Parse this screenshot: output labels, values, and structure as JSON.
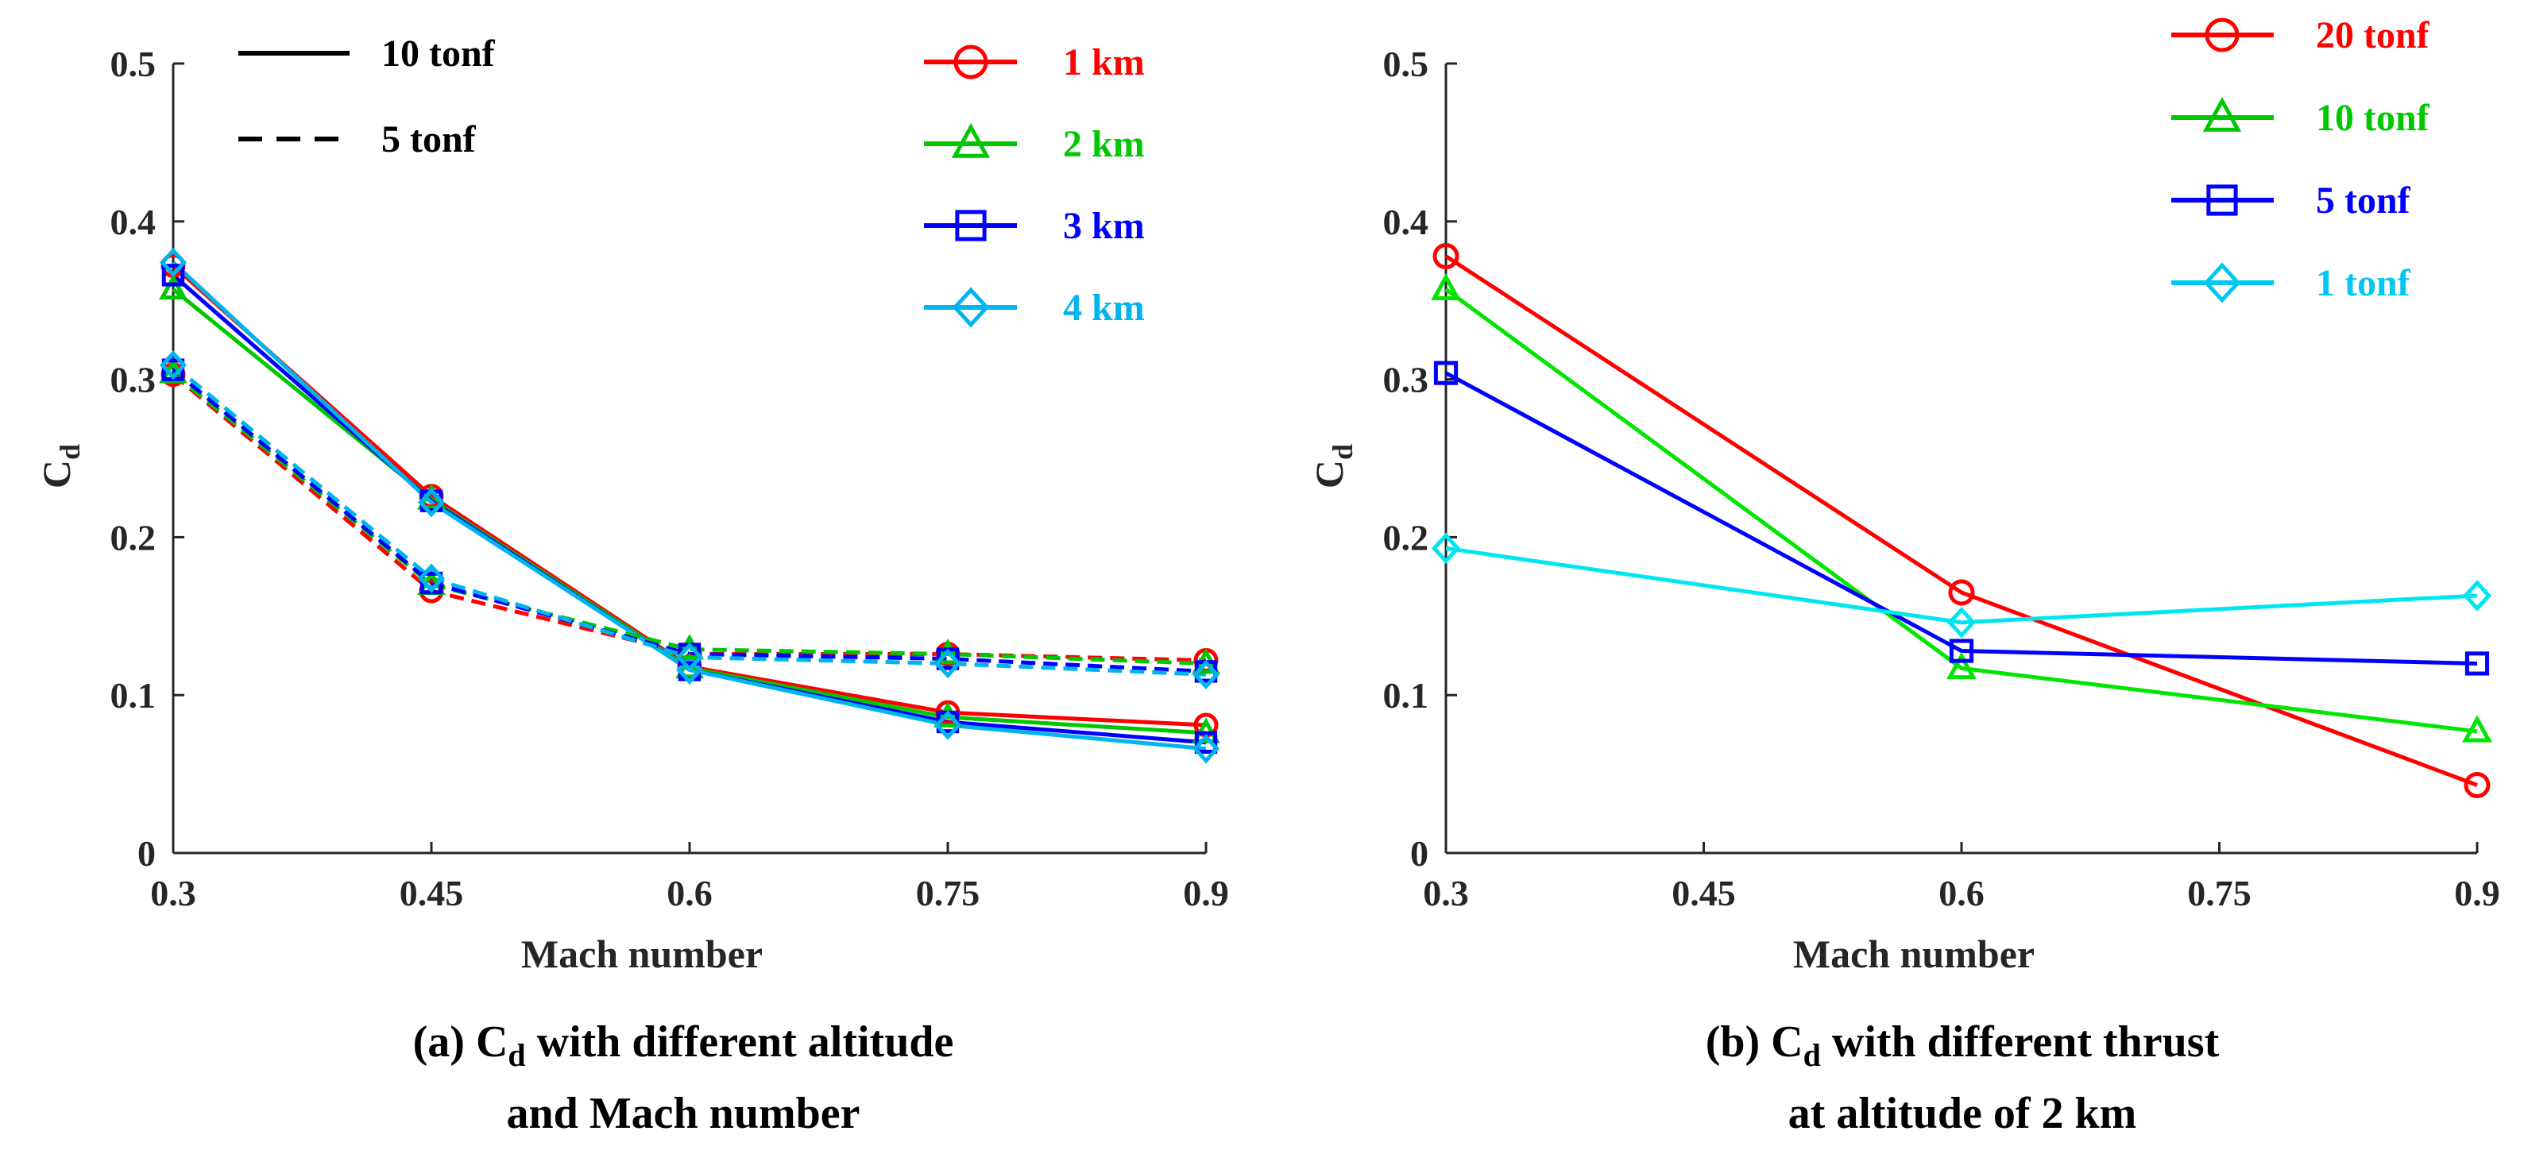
{
  "panels": [
    {
      "caption_line1": "(a)   C",
      "caption_sub": "d",
      "caption_line1_rest": " with different altitude",
      "caption_line2": "and Mach number",
      "xlabel": "Mach number",
      "ylabel": "C",
      "ylabel_sub": "d",
      "style_legend": [
        {
          "label": "10 tonf",
          "dash": false
        },
        {
          "label": "5 tonf",
          "dash": true
        }
      ]
    },
    {
      "caption_line1": "(b) C",
      "caption_sub": "d",
      "caption_line1_rest": " with different thrust",
      "caption_line2": "at altitude of 2 km",
      "xlabel": "Mach number",
      "ylabel": "C",
      "ylabel_sub": "d"
    }
  ],
  "chart_data": [
    {
      "type": "line",
      "xlabel": "Mach number",
      "ylabel": "Cd",
      "xlim": [
        0.3,
        0.9
      ],
      "ylim": [
        0,
        0.5
      ],
      "xticks": [
        "0.3",
        "0.45",
        "0.6",
        "0.75",
        "0.9"
      ],
      "yticks": [
        "0",
        "0.1",
        "0.2",
        "0.3",
        "0.4",
        "0.5"
      ],
      "grid": false,
      "legend_position": "top-right",
      "x": [
        0.3,
        0.45,
        0.6,
        0.75,
        0.9
      ],
      "series": [
        {
          "name": "1 km",
          "color": "#ff0000",
          "marker": "circle",
          "line": "solid",
          "thrust": "10 tonf",
          "values": [
            0.372,
            0.226,
            0.118,
            0.089,
            0.081
          ]
        },
        {
          "name": "2 km",
          "color": "#00c800",
          "marker": "triangle",
          "line": "solid",
          "thrust": "10 tonf",
          "values": [
            0.357,
            0.224,
            0.117,
            0.086,
            0.076
          ]
        },
        {
          "name": "3 km",
          "color": "#0000ff",
          "marker": "square",
          "line": "solid",
          "thrust": "10 tonf",
          "values": [
            0.366,
            0.223,
            0.116,
            0.083,
            0.07
          ]
        },
        {
          "name": "4 km",
          "color": "#00b4f0",
          "marker": "diamond",
          "line": "solid",
          "thrust": "10 tonf",
          "values": [
            0.374,
            0.222,
            0.116,
            0.081,
            0.066
          ]
        },
        {
          "name": "1 km",
          "color": "#ff0000",
          "marker": "circle",
          "line": "dashed",
          "thrust": "5 tonf",
          "values": [
            0.303,
            0.166,
            0.126,
            0.126,
            0.122
          ]
        },
        {
          "name": "2 km",
          "color": "#00c800",
          "marker": "triangle",
          "line": "dashed",
          "thrust": "5 tonf",
          "values": [
            0.304,
            0.17,
            0.129,
            0.126,
            0.12
          ]
        },
        {
          "name": "3 km",
          "color": "#0000ff",
          "marker": "square",
          "line": "dashed",
          "thrust": "5 tonf",
          "values": [
            0.306,
            0.171,
            0.126,
            0.123,
            0.115
          ]
        },
        {
          "name": "4 km",
          "color": "#00b4f0",
          "marker": "diamond",
          "line": "dashed",
          "thrust": "5 tonf",
          "values": [
            0.309,
            0.174,
            0.124,
            0.12,
            0.113
          ]
        }
      ],
      "legend": [
        {
          "label": "1 km",
          "color": "#ff0000",
          "marker": "circle"
        },
        {
          "label": "2 km",
          "color": "#00c800",
          "marker": "triangle"
        },
        {
          "label": "3 km",
          "color": "#0000ff",
          "marker": "square"
        },
        {
          "label": "4 km",
          "color": "#00b4f0",
          "marker": "diamond"
        }
      ]
    },
    {
      "type": "line",
      "xlabel": "Mach number",
      "ylabel": "Cd",
      "xlim": [
        0.3,
        0.9
      ],
      "ylim": [
        0,
        0.5
      ],
      "xticks": [
        "0.3",
        "0.45",
        "0.6",
        "0.75",
        "0.9"
      ],
      "yticks": [
        "0",
        "0.1",
        "0.2",
        "0.3",
        "0.4",
        "0.5"
      ],
      "grid": false,
      "legend_position": "top-right",
      "x": [
        0.3,
        0.6,
        0.9
      ],
      "series": [
        {
          "name": "20 tonf",
          "color": "#ff0000",
          "marker": "circle",
          "line": "solid",
          "values": [
            0.378,
            0.165,
            0.043
          ]
        },
        {
          "name": "10 tonf",
          "color": "#00e600",
          "marker": "triangle",
          "line": "solid",
          "values": [
            0.357,
            0.117,
            0.077
          ]
        },
        {
          "name": "5 tonf",
          "color": "#0000ff",
          "marker": "square",
          "line": "solid",
          "values": [
            0.304,
            0.128,
            0.12
          ]
        },
        {
          "name": "1 tonf",
          "color": "#00e6f0",
          "marker": "diamond",
          "line": "solid",
          "values": [
            0.193,
            0.146,
            0.163
          ]
        }
      ],
      "legend": [
        {
          "label": "20 tonf",
          "color": "#ff0000",
          "marker": "circle"
        },
        {
          "label": "10 tonf",
          "color": "#00c800",
          "marker": "triangle"
        },
        {
          "label": "5 tonf",
          "color": "#0000ff",
          "marker": "square"
        },
        {
          "label": "1 tonf",
          "color": "#00c8f0",
          "marker": "diamond"
        }
      ]
    }
  ]
}
